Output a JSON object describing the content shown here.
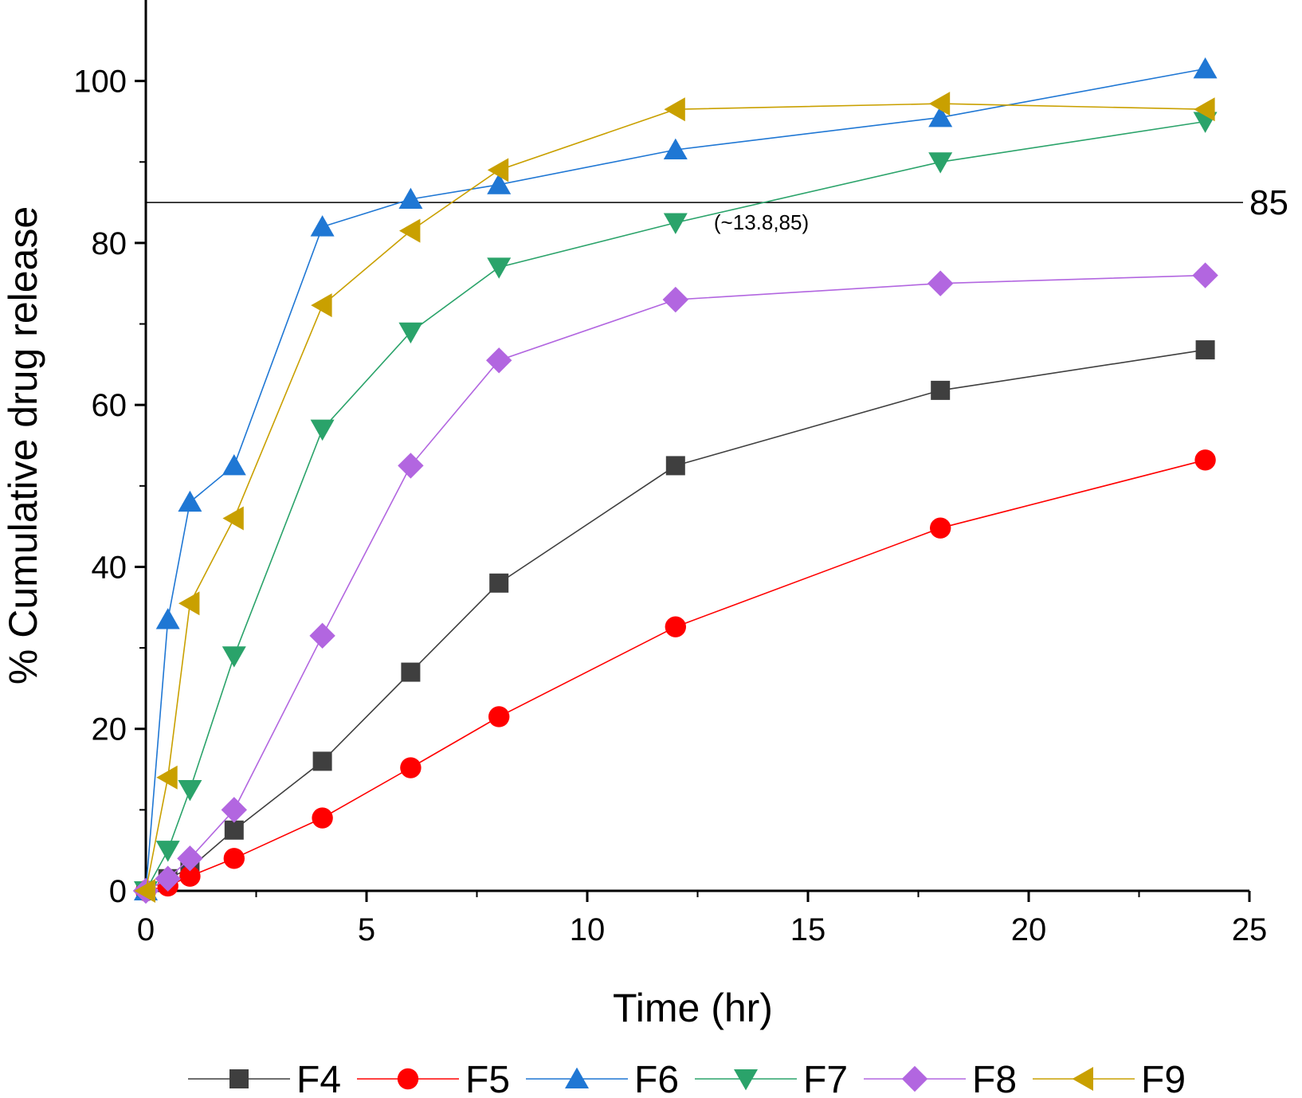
{
  "chart_data": {
    "type": "line",
    "xlabel": "Time (hr)",
    "ylabel": "% Cumulative drug release",
    "xlim": [
      0,
      25
    ],
    "ylim": [
      0,
      110
    ],
    "xticks": [
      0,
      5,
      10,
      15,
      20,
      25
    ],
    "yticks": [
      0,
      20,
      40,
      60,
      80,
      100
    ],
    "grid": false,
    "legend_position": "bottom",
    "x": [
      0,
      0.5,
      1,
      2,
      4,
      6,
      8,
      12,
      18,
      24
    ],
    "series": [
      {
        "name": "F4",
        "color": "#3f3f3f",
        "marker": "square",
        "values": [
          0,
          1.5,
          2.8,
          7.5,
          16.0,
          27.0,
          38.0,
          52.5,
          61.8,
          66.8
        ]
      },
      {
        "name": "F5",
        "color": "#ff0000",
        "marker": "circle",
        "values": [
          0,
          0.6,
          1.8,
          4.0,
          9.0,
          15.2,
          21.5,
          32.6,
          44.8,
          53.2
        ]
      },
      {
        "name": "F6",
        "color": "#1f77d4",
        "marker": "triangle-up",
        "values": [
          0,
          33.5,
          48.0,
          52.5,
          82.0,
          85.4,
          87.2,
          91.5,
          95.5,
          101.5
        ]
      },
      {
        "name": "F7",
        "color": "#2aa36a",
        "marker": "triangle-down",
        "values": [
          0,
          5.0,
          12.5,
          29.0,
          57.0,
          69.0,
          77.0,
          82.5,
          90.0,
          95.0
        ]
      },
      {
        "name": "F8",
        "color": "#b266e0",
        "marker": "diamond",
        "values": [
          0,
          1.5,
          4.0,
          10.0,
          31.5,
          52.5,
          65.5,
          73.0,
          75.0,
          76.0
        ]
      },
      {
        "name": "F9",
        "color": "#c9a000",
        "marker": "triangle-left",
        "values": [
          0,
          14.0,
          35.5,
          46.0,
          72.3,
          81.5,
          89.0,
          96.5,
          97.2,
          96.5
        ]
      }
    ],
    "reference_line": {
      "y": 85,
      "label": "85"
    },
    "annotation": {
      "text": "(~13.8,85)",
      "x": 13.8,
      "y": 85
    }
  }
}
